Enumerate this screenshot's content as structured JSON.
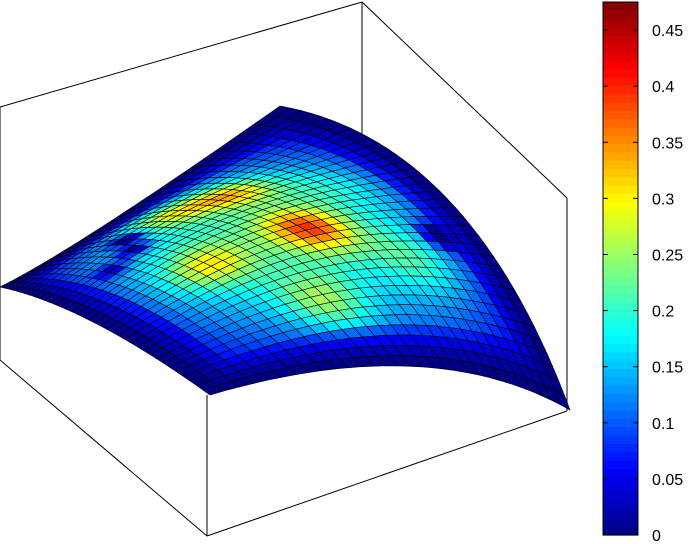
{
  "chart_data": {
    "type": "surface",
    "title": "",
    "xlabel": "",
    "ylabel": "",
    "zlabel": "",
    "colormap": "jet",
    "clim": [
      0,
      0.475
    ],
    "grid": false,
    "box": true,
    "mesh_size": [
      36,
      30
    ],
    "surface_shape": "dome-shaped surface with lowered corner flaps; values near 0 at the outer edges rising to about 0.42 at the central hot spots",
    "hotspots": [
      {
        "u": 0.55,
        "v": 0.58,
        "value": 0.42
      },
      {
        "u": 0.27,
        "v": 0.6,
        "value": 0.38
      },
      {
        "u": 0.22,
        "v": 0.47,
        "value": 0.34
      },
      {
        "u": 0.55,
        "v": 0.3,
        "value": 0.35
      },
      {
        "u": 0.8,
        "v": 0.42,
        "value": 0.33
      },
      {
        "u": 0.4,
        "v": 0.77,
        "value": 0.26
      },
      {
        "u": 0.7,
        "v": 0.75,
        "value": 0.29
      }
    ],
    "dips": [
      {
        "u": 0.22,
        "v": 0.33,
        "value": 0.05
      },
      {
        "u": 0.3,
        "v": 0.28,
        "value": 0.08
      },
      {
        "u": 0.62,
        "v": 0.88,
        "value": 0.09
      },
      {
        "u": 0.33,
        "v": 0.18,
        "value": 0.12
      }
    ],
    "colorbar": {
      "position": "right",
      "ticks": [
        "0",
        "0.05",
        "0.1",
        "0.15",
        "0.2",
        "0.25",
        "0.3",
        "0.35",
        "0.4",
        "0.45"
      ],
      "tick_values": [
        0,
        0.05,
        0.1,
        0.15,
        0.2,
        0.25,
        0.3,
        0.35,
        0.4,
        0.45
      ]
    }
  }
}
